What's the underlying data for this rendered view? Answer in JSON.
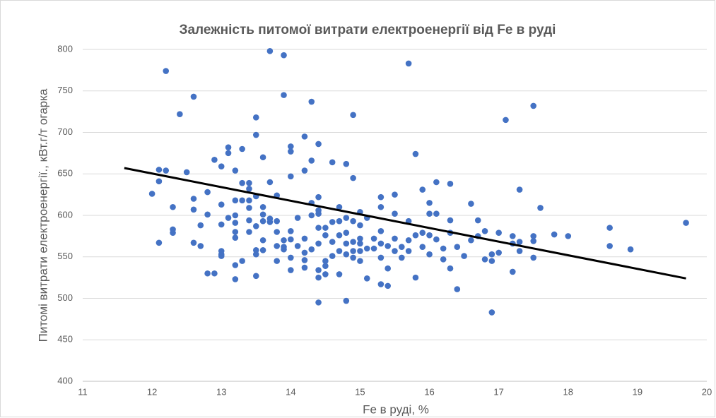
{
  "chart_data": {
    "type": "scatter",
    "title": "Залежність питомої витрати електроенергії від Fe в руді",
    "x_label": "Fe в руді, %",
    "y_label": "Питомі витрати електроенергії., кВт.г/т огарка",
    "color": "#4472c4",
    "grid": true,
    "xlim": [
      11,
      20
    ],
    "xticks": [
      11,
      12,
      13,
      14,
      15,
      16,
      17,
      18,
      19,
      20
    ],
    "ylim": [
      400,
      800
    ],
    "yticks": [
      400,
      450,
      500,
      550,
      600,
      650,
      700,
      750,
      800
    ],
    "x": [
      12.0,
      12.1,
      12.1,
      12.1,
      12.2,
      12.2,
      12.3,
      12.3,
      12.3,
      12.4,
      12.5,
      12.6,
      12.6,
      12.6,
      12.6,
      12.7,
      12.7,
      12.8,
      12.8,
      12.8,
      12.9,
      12.9,
      13.0,
      13.0,
      13.0,
      13.0,
      13.0,
      13.0,
      13.1,
      13.1,
      13.1,
      13.2,
      13.2,
      13.2,
      13.2,
      13.2,
      13.2,
      13.2,
      13.2,
      13.3,
      13.3,
      13.3,
      13.3,
      13.4,
      13.4,
      13.4,
      13.4,
      13.4,
      13.4,
      13.5,
      13.5,
      13.5,
      13.5,
      13.5,
      13.5,
      13.5,
      13.6,
      13.6,
      13.6,
      13.6,
      13.6,
      13.6,
      13.7,
      13.7,
      13.7,
      13.7,
      13.8,
      13.8,
      13.8,
      13.8,
      13.8,
      13.9,
      13.9,
      13.9,
      13.9,
      13.9,
      14.0,
      14.0,
      14.0,
      14.0,
      14.0,
      14.0,
      14.0,
      14.1,
      14.1,
      14.2,
      14.2,
      14.2,
      14.2,
      14.2,
      14.2,
      14.3,
      14.3,
      14.3,
      14.3,
      14.3,
      14.4,
      14.4,
      14.4,
      14.4,
      14.4,
      14.4,
      14.4,
      14.4,
      14.4,
      14.5,
      14.5,
      14.5,
      14.5,
      14.5,
      14.6,
      14.6,
      14.6,
      14.6,
      14.7,
      14.7,
      14.7,
      14.7,
      14.7,
      14.8,
      14.8,
      14.8,
      14.8,
      14.8,
      14.8,
      14.9,
      14.9,
      14.9,
      14.9,
      14.9,
      14.9,
      15.0,
      15.0,
      15.0,
      15.0,
      15.0,
      15.0,
      15.1,
      15.1,
      15.1,
      15.2,
      15.2,
      15.3,
      15.3,
      15.3,
      15.3,
      15.3,
      15.3,
      15.4,
      15.4,
      15.4,
      15.5,
      15.5,
      15.5,
      15.5,
      15.6,
      15.6,
      15.7,
      15.7,
      15.7,
      15.7,
      15.8,
      15.8,
      15.8,
      15.9,
      15.9,
      15.9,
      16.0,
      16.0,
      16.0,
      16.0,
      16.1,
      16.1,
      16.1,
      16.2,
      16.2,
      16.3,
      16.3,
      16.3,
      16.3,
      16.4,
      16.4,
      16.5,
      16.6,
      16.6,
      16.7,
      16.7,
      16.8,
      16.8,
      16.9,
      16.9,
      16.9,
      17.0,
      17.0,
      17.1,
      17.2,
      17.2,
      17.2,
      17.3,
      17.3,
      17.3,
      17.5,
      17.5,
      17.5,
      17.5,
      17.6,
      17.8,
      18.0,
      18.6,
      18.6,
      18.9,
      19.7
    ],
    "values": [
      626,
      567,
      641,
      655,
      774,
      654,
      610,
      583,
      579,
      722,
      652,
      743,
      620,
      607,
      567,
      563,
      588,
      628,
      601,
      530,
      667,
      530,
      659,
      613,
      589,
      557,
      553,
      551,
      682,
      675,
      597,
      654,
      618,
      600,
      591,
      580,
      573,
      540,
      523,
      680,
      639,
      618,
      545,
      639,
      632,
      618,
      609,
      594,
      580,
      718,
      697,
      623,
      587,
      558,
      553,
      527,
      670,
      610,
      601,
      593,
      570,
      558,
      798,
      640,
      596,
      592,
      624,
      593,
      580,
      563,
      545,
      793,
      745,
      570,
      562,
      559,
      683,
      677,
      647,
      581,
      571,
      549,
      534,
      563,
      597,
      695,
      654,
      572,
      555,
      546,
      537,
      737,
      666,
      615,
      600,
      559,
      686,
      622,
      606,
      602,
      585,
      566,
      534,
      525,
      495,
      585,
      576,
      545,
      539,
      529,
      664,
      592,
      568,
      551,
      610,
      593,
      576,
      557,
      529,
      662,
      597,
      579,
      566,
      553,
      497,
      721,
      645,
      593,
      568,
      557,
      549,
      604,
      588,
      572,
      566,
      557,
      545,
      597,
      560,
      524,
      572,
      560,
      622,
      610,
      581,
      566,
      549,
      517,
      563,
      536,
      515,
      625,
      602,
      572,
      557,
      562,
      549,
      783,
      593,
      570,
      557,
      674,
      576,
      525,
      631,
      579,
      562,
      615,
      602,
      576,
      553,
      640,
      602,
      571,
      560,
      547,
      638,
      594,
      579,
      536,
      511,
      562,
      551,
      614,
      570,
      594,
      575,
      581,
      547,
      553,
      545,
      483,
      579,
      555,
      715,
      575,
      566,
      532,
      631,
      568,
      557,
      732,
      575,
      569,
      549,
      609,
      577,
      575,
      585,
      563,
      559,
      591
    ],
    "trendline": {
      "x": [
        11.6,
        19.7
      ],
      "values": [
        657,
        524
      ],
      "color": "#000000"
    }
  }
}
